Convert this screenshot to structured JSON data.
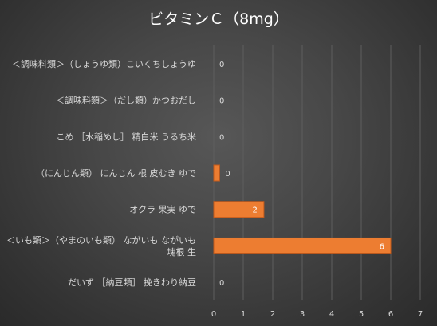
{
  "chart_data": {
    "type": "bar",
    "orientation": "horizontal",
    "title": "ビタミンＣ（8mg）",
    "xlabel": "",
    "ylabel": "",
    "xlim": [
      0,
      7
    ],
    "x_ticks": [
      "0",
      "1",
      "2",
      "3",
      "4",
      "5",
      "6",
      "7"
    ],
    "grid": true,
    "legend": "none",
    "categories": [
      [
        "＜調味料類＞（しょうゆ類）こいくちしょうゆ"
      ],
      [
        "＜調味料類＞（だし類）かつおだし"
      ],
      [
        "こめ ［水稲めし］ 精白米 うるち米"
      ],
      [
        "（にんじん類） にんじん 根 皮むき ゆで"
      ],
      [
        "オクラ 果実 ゆで"
      ],
      [
        "＜いも類＞（やまのいも類） ながいも ながいも",
        "塊根 生"
      ],
      [
        "だいず ［納豆類］ 挽きわり納豆"
      ]
    ],
    "values": [
      0,
      0,
      0,
      0.2,
      1.7,
      6,
      0
    ],
    "data_labels": [
      "0",
      "0",
      "0",
      "0",
      "2",
      "6",
      "0"
    ],
    "bar_color": "#ed7d31",
    "bar_border_color": "#c25a1c",
    "label_color": "#d9d9d9",
    "grid_color": "#5e5e5e",
    "title_color": "#ffffff"
  }
}
